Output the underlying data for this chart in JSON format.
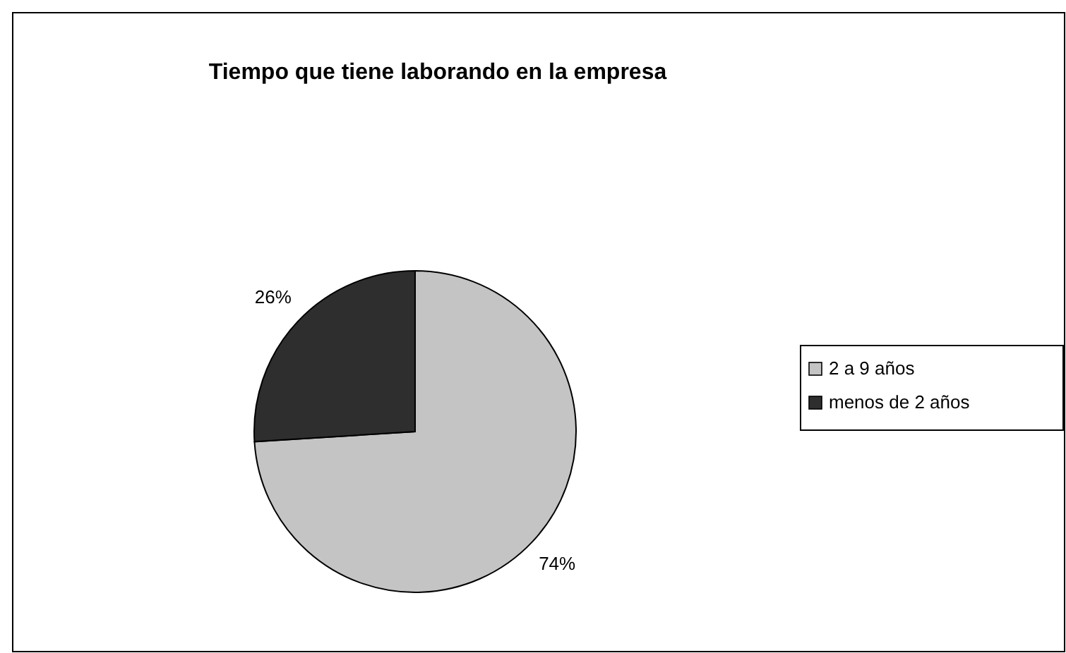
{
  "chart_data": {
    "type": "pie",
    "title": "Tiempo que tiene laborando en la empresa",
    "categories": [
      "2 a 9 años",
      "menos de 2 años"
    ],
    "values": [
      74,
      26
    ],
    "value_labels": [
      "74%",
      "26%"
    ],
    "colors": [
      "#c4c4c4",
      "#2e2e2e"
    ],
    "legend": "right"
  }
}
